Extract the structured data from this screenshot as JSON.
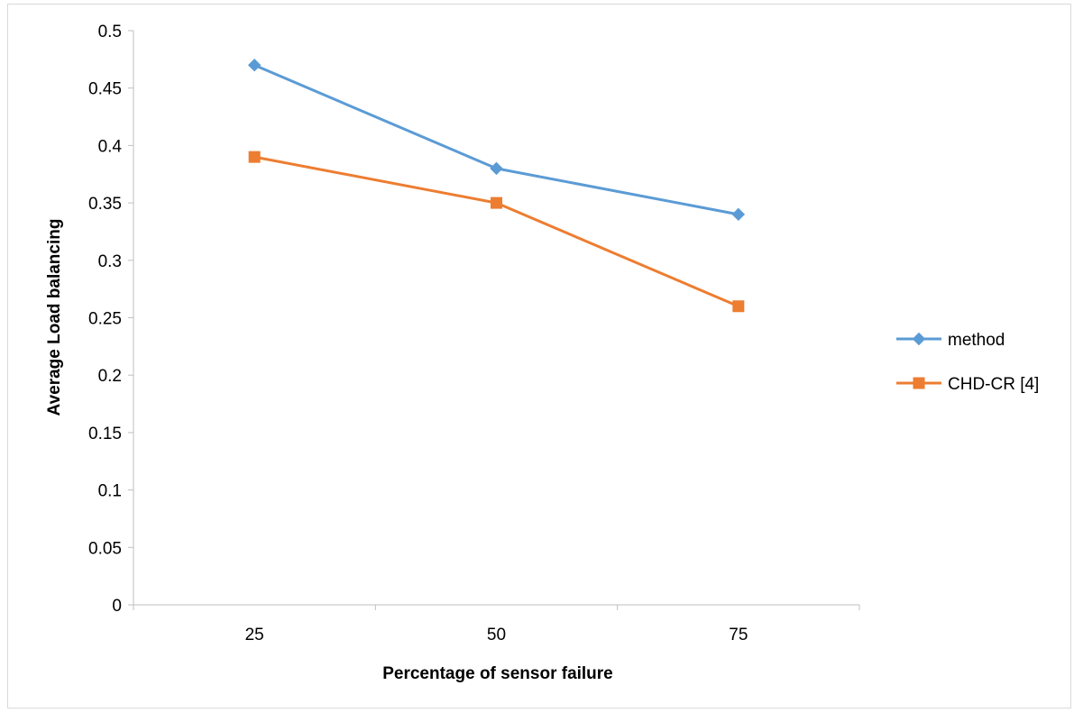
{
  "chart_data": {
    "type": "line",
    "title": "",
    "xlabel": "Percentage of sensor failure",
    "ylabel": "Average Load balancing",
    "categories": [
      "25",
      "50",
      "75"
    ],
    "yticks": [
      "0",
      "0.05",
      "0.1",
      "0.15",
      "0.2",
      "0.25",
      "0.3",
      "0.35",
      "0.4",
      "0.45",
      "0.5"
    ],
    "ylim": [
      0,
      0.5
    ],
    "grid": false,
    "legend_position": "right",
    "series": [
      {
        "name": "method",
        "values": [
          0.47,
          0.38,
          0.34
        ],
        "color": "#5b9bd5",
        "marker": "diamond"
      },
      {
        "name": "CHD-CR [4]",
        "values": [
          0.39,
          0.35,
          0.26
        ],
        "color": "#ed7d31",
        "marker": "square"
      }
    ]
  }
}
